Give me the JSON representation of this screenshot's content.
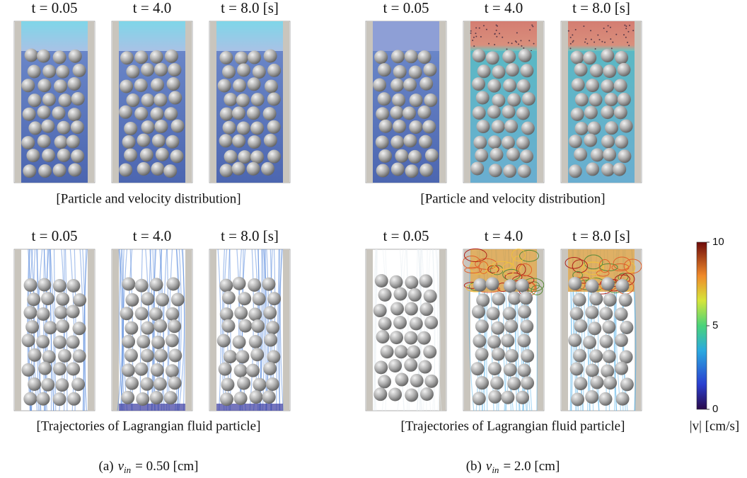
{
  "columns": [
    {
      "caption": {
        "label": "(a)",
        "symbol": "v",
        "subscript": "in",
        "value": "= 0.50 [cm]"
      },
      "rows": [
        {
          "times": [
            "t = 0.05",
            "t = 4.0",
            "t = 8.0 [s]"
          ],
          "caption": "[Particle and velocity distribution]"
        },
        {
          "times": [
            "t = 0.05",
            "t = 4.0",
            "t = 8.0 [s]"
          ],
          "caption": "[Trajectories of Lagrangian fluid particle]"
        }
      ]
    },
    {
      "caption": {
        "label": "(b)",
        "symbol": "v",
        "subscript": "in",
        "value": "= 2.0 [cm]"
      },
      "rows": [
        {
          "times": [
            "t = 0.05",
            "t = 4.0",
            "t = 8.0 [s]"
          ],
          "caption": "[Particle and velocity distribution]"
        },
        {
          "times": [
            "t = 0.05",
            "t = 4.0",
            "t = 8.0 [s]"
          ],
          "caption": "[Trajectories of Lagrangian fluid particle]"
        }
      ]
    }
  ],
  "colorbar": {
    "label": "|v| [cm/s]",
    "lim": [
      0,
      10
    ],
    "ticks": [
      0,
      5,
      10
    ]
  }
}
